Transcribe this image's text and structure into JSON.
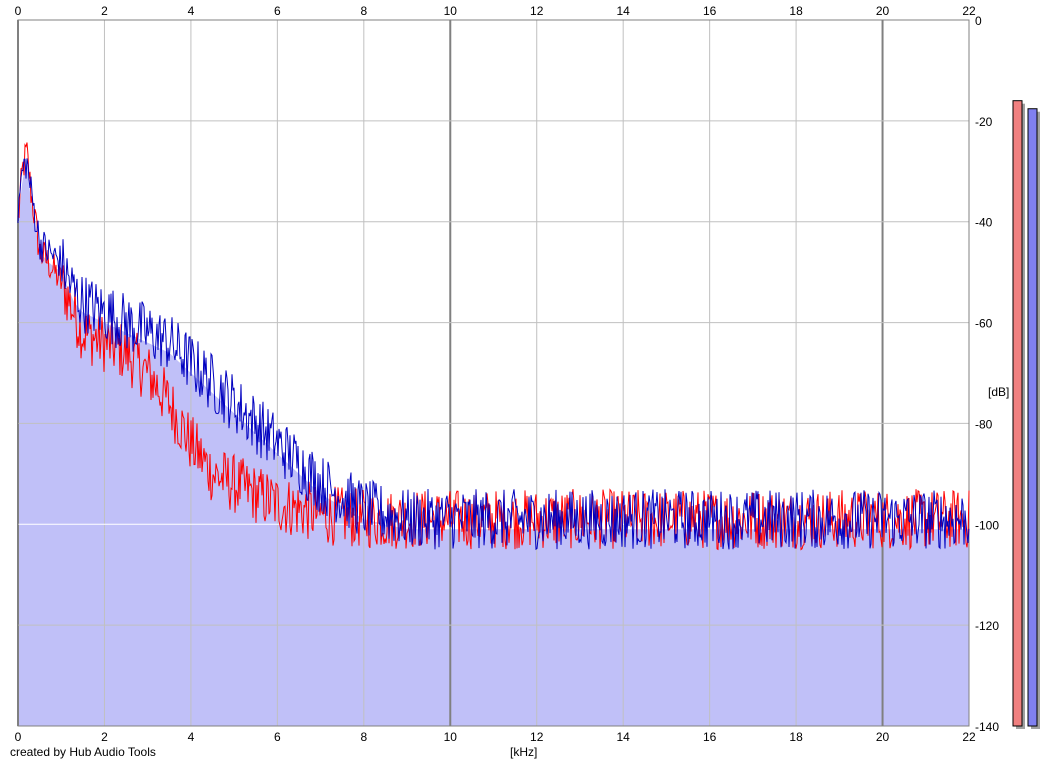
{
  "credit": "created by Hub Audio Tools",
  "colors": {
    "background": "#ffffff",
    "fill": "#c0c0f8",
    "grid": "#c0c0c0",
    "grid_major": "#808080",
    "channel_left": "#ff0000",
    "channel_right": "#0000c0",
    "meter_left": "#f08080",
    "meter_right": "#8080f0"
  },
  "chart_data": {
    "type": "line",
    "xlabel": "[kHz]",
    "ylabel": "[dB]",
    "xlim": [
      0,
      22
    ],
    "ylim": [
      -140,
      0
    ],
    "x_ticks": [
      "0",
      "2",
      "4",
      "6",
      "8",
      "10",
      "12",
      "14",
      "16",
      "18",
      "20",
      "22"
    ],
    "y_ticks": [
      "0",
      "-20",
      "-40",
      "-60",
      "-80",
      "-100",
      "-120",
      "-140"
    ],
    "grid": true,
    "series": [
      {
        "color": "#ff0000",
        "x": [
          0,
          0.1,
          0.2,
          0.3,
          0.5,
          0.7,
          1.0,
          1.3,
          1.5,
          2.0,
          2.5,
          3.0,
          3.5,
          4.0,
          4.5,
          5.0,
          5.5,
          6.0,
          7.0,
          8.0,
          9.0,
          10.0,
          12.0,
          14.0,
          16.0,
          18.0,
          20.0,
          22.0
        ],
        "y": [
          -40,
          -30,
          -26,
          -34,
          -46,
          -48,
          -52,
          -58,
          -62,
          -64,
          -66,
          -70,
          -76,
          -84,
          -90,
          -92,
          -94,
          -96,
          -98,
          -99,
          -99,
          -99,
          -99,
          -99,
          -99,
          -99,
          -99,
          -99
        ]
      },
      {
        "color": "#0000c0",
        "x": [
          0,
          0.1,
          0.2,
          0.3,
          0.5,
          0.7,
          1.0,
          1.3,
          1.5,
          2.0,
          2.5,
          3.0,
          3.5,
          4.0,
          4.5,
          5.0,
          5.5,
          6.0,
          7.0,
          8.0,
          9.0,
          10.0,
          12.0,
          14.0,
          16.0,
          18.0,
          20.0,
          22.0
        ],
        "y": [
          -38,
          -30,
          -28,
          -34,
          -44,
          -46,
          -48,
          -54,
          -56,
          -58,
          -60,
          -62,
          -64,
          -68,
          -72,
          -76,
          -80,
          -84,
          -92,
          -97,
          -99,
          -99,
          -99,
          -99,
          -99,
          -99,
          -99,
          -99
        ]
      }
    ],
    "level_meters": [
      {
        "color": "#f08080",
        "level_db": -16
      },
      {
        "color": "#8080f0",
        "level_db": -17
      }
    ]
  }
}
